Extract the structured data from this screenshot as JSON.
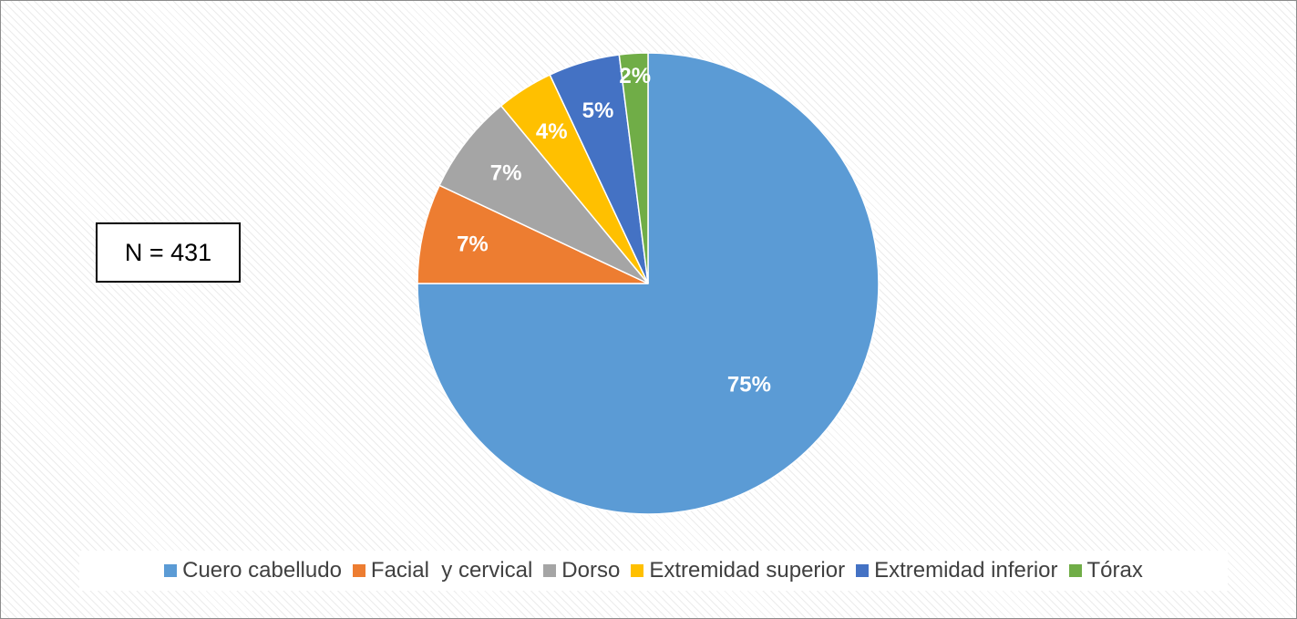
{
  "chart_data": {
    "type": "pie",
    "annotation": "N = 431",
    "legend_position": "bottom",
    "start_angle_deg": 0,
    "direction": "clockwise",
    "slices": [
      {
        "label": "Cuero cabelludo",
        "value": 75,
        "display": "75%",
        "color": "#5b9bd5"
      },
      {
        "label": "Facial  y cervical",
        "value": 7,
        "display": "7%",
        "color": "#ed7d31"
      },
      {
        "label": "Dorso",
        "value": 7,
        "display": "7%",
        "color": "#a5a5a5"
      },
      {
        "label": "Extremidad superior",
        "value": 4,
        "display": "4%",
        "color": "#ffc000"
      },
      {
        "label": "Extremidad inferior",
        "value": 5,
        "display": "5%",
        "color": "#4472c4"
      },
      {
        "label": "Tórax",
        "value": 2,
        "display": "2%",
        "color": "#70ad47"
      }
    ]
  }
}
